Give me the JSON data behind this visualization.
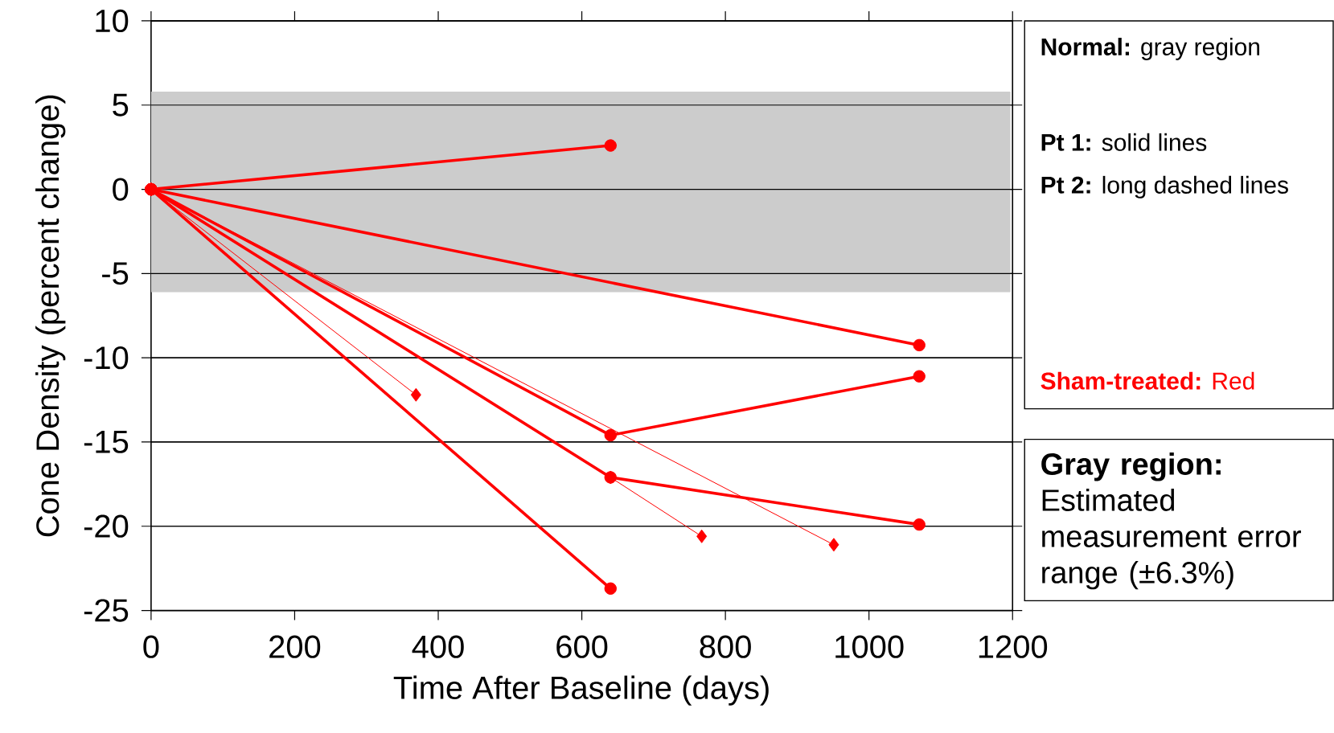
{
  "chart_data": {
    "type": "line",
    "xlabel": "Time After Baseline (days)",
    "ylabel": "Cone Density (percent change)",
    "xlim": [
      0,
      1200
    ],
    "ylim": [
      -25,
      10
    ],
    "xticks": [
      0,
      200,
      400,
      600,
      800,
      1000,
      1200
    ],
    "yticks": [
      -25,
      -20,
      -15,
      -10,
      -5,
      0,
      5,
      10
    ],
    "grid": "y",
    "bands": [
      {
        "axis": "y",
        "from": -6.1,
        "to": 5.8,
        "color": "#cccccc"
      }
    ],
    "series": [
      {
        "color": "#ff0000",
        "marker": "diamond",
        "x": [
          0,
          369
        ],
        "values": [
          0,
          -12.2
        ]
      },
      {
        "color": "#ff0000",
        "marker": "diamond",
        "x": [
          0,
          640,
          767
        ],
        "values": [
          0,
          -17.1,
          -20.6
        ]
      },
      {
        "color": "#ff0000",
        "marker": "diamond",
        "x": [
          0,
          951
        ],
        "values": [
          0,
          -21.1
        ]
      },
      {
        "color": "#ff0000",
        "marker": "circle",
        "x": [
          0,
          640
        ],
        "values": [
          0,
          2.6
        ]
      },
      {
        "color": "#ff0000",
        "marker": "circle",
        "x": [
          0,
          1070
        ],
        "values": [
          0,
          -9.25
        ]
      },
      {
        "color": "#ff0000",
        "marker": "circle",
        "x": [
          0,
          640,
          1070
        ],
        "values": [
          0,
          -14.6,
          -11.1
        ]
      },
      {
        "color": "#ff0000",
        "marker": "circle",
        "x": [
          0,
          640,
          1070
        ],
        "values": [
          0,
          -17.1,
          -19.9
        ]
      },
      {
        "color": "#ff0000",
        "marker": "circle",
        "x": [
          0,
          640
        ],
        "values": [
          0,
          -23.7
        ]
      }
    ],
    "annotations": [
      "**Normal:** gray region",
      "**Pt 1:** solid lines",
      "**Pt 2:** long dashed lines",
      "**Sham-treated:** Red",
      "**Gray region:** Estimated measurement error range (±6.3%)"
    ]
  }
}
